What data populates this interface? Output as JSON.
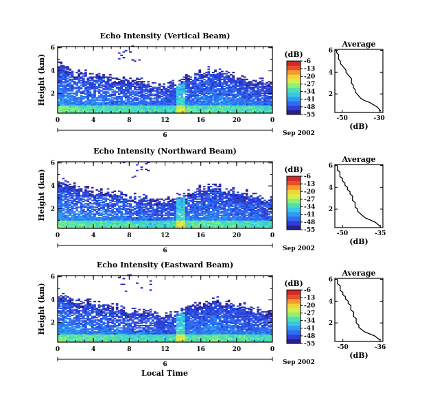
{
  "figure": {
    "bottom_xlabel": "Local Time",
    "date_label": "Sep 2002",
    "day_label": "6"
  },
  "colorbar": {
    "unit": "(dB)",
    "ticks": [
      "-6",
      "-13",
      "-20",
      "-27",
      "-34",
      "-41",
      "-48",
      "-55"
    ],
    "range": [
      -55,
      -6
    ],
    "colors": [
      "#2a1e8c",
      "#2d3fd4",
      "#2f6cf2",
      "#2f9cf2",
      "#38c8e6",
      "#4fe0b0",
      "#8ef07a",
      "#d4f04a",
      "#f5d23a",
      "#f59a2e",
      "#e8502a",
      "#d4282a"
    ]
  },
  "chart_data": [
    {
      "type": "heatmap",
      "title": "Echo Intensity (Vertical Beam)",
      "ylabel": "Height (km)",
      "x_ticks": [
        "0",
        "4",
        "8",
        "12",
        "16",
        "20",
        "0"
      ],
      "xlim": [
        0,
        24
      ],
      "y_ticks": [
        "6",
        "4",
        "2"
      ],
      "ylim": [
        0.3,
        6.1
      ],
      "avg": {
        "title": "Average",
        "xlabel": "(dB)",
        "x_ticks": [
          "-50",
          "-30"
        ],
        "xlim": [
          -54,
          -28
        ],
        "y_ticks": [
          "6",
          "4",
          "2"
        ],
        "ylim": [
          0.3,
          6.1
        ],
        "profile": [
          [
            0.4,
            -29
          ],
          [
            0.6,
            -30
          ],
          [
            0.8,
            -31
          ],
          [
            1.0,
            -33
          ],
          [
            1.2,
            -35
          ],
          [
            1.4,
            -38
          ],
          [
            1.6,
            -40
          ],
          [
            1.8,
            -41
          ],
          [
            2.0,
            -42
          ],
          [
            2.2,
            -43
          ],
          [
            2.4,
            -43
          ],
          [
            2.6,
            -44
          ],
          [
            2.8,
            -44
          ],
          [
            3.0,
            -45
          ],
          [
            3.2,
            -45
          ],
          [
            3.4,
            -45
          ],
          [
            3.6,
            -46
          ],
          [
            3.8,
            -47
          ],
          [
            4.0,
            -48
          ],
          [
            4.2,
            -48
          ],
          [
            4.4,
            -49
          ],
          [
            4.6,
            -50
          ],
          [
            4.8,
            -51
          ],
          [
            5.0,
            -51
          ],
          [
            5.2,
            -52
          ],
          [
            5.4,
            -52
          ],
          [
            5.6,
            -52
          ],
          [
            5.8,
            -53
          ],
          [
            6.0,
            -53
          ]
        ]
      }
    },
    {
      "type": "heatmap",
      "title": "Echo Intensity (Northward Beam)",
      "ylabel": "Height (km)",
      "x_ticks": [
        "0",
        "4",
        "8",
        "12",
        "16",
        "20",
        "0"
      ],
      "xlim": [
        0,
        24
      ],
      "y_ticks": [
        "6",
        "4",
        "2"
      ],
      "ylim": [
        0.3,
        6.1
      ],
      "avg": {
        "title": "Average",
        "xlabel": "(dB)",
        "x_ticks": [
          "-50",
          "-35"
        ],
        "xlim": [
          -53,
          -34
        ],
        "y_ticks": [
          "6",
          "4",
          "2"
        ],
        "ylim": [
          0.3,
          6.1
        ],
        "profile": [
          [
            0.4,
            -35
          ],
          [
            0.6,
            -36
          ],
          [
            0.8,
            -37
          ],
          [
            1.0,
            -39
          ],
          [
            1.2,
            -41
          ],
          [
            1.4,
            -42
          ],
          [
            1.6,
            -43
          ],
          [
            1.8,
            -44
          ],
          [
            2.0,
            -44
          ],
          [
            2.2,
            -45
          ],
          [
            2.4,
            -45
          ],
          [
            2.6,
            -45
          ],
          [
            2.8,
            -46
          ],
          [
            3.0,
            -46
          ],
          [
            3.2,
            -46
          ],
          [
            3.4,
            -47
          ],
          [
            3.6,
            -47
          ],
          [
            3.8,
            -48
          ],
          [
            4.0,
            -48
          ],
          [
            4.2,
            -49
          ],
          [
            4.4,
            -49
          ],
          [
            4.6,
            -50
          ],
          [
            4.8,
            -50
          ],
          [
            5.0,
            -51
          ],
          [
            5.2,
            -51
          ],
          [
            5.4,
            -51
          ],
          [
            5.6,
            -52
          ],
          [
            5.8,
            -52
          ],
          [
            6.0,
            -52
          ]
        ]
      }
    },
    {
      "type": "heatmap",
      "title": "Echo Intensity (Eastward Beam)",
      "ylabel": "Height (km)",
      "x_ticks": [
        "0",
        "4",
        "8",
        "12",
        "16",
        "20",
        "0"
      ],
      "xlim": [
        0,
        24
      ],
      "y_ticks": [
        "6",
        "4",
        "2"
      ],
      "ylim": [
        0.3,
        6.1
      ],
      "avg": {
        "title": "Average",
        "xlabel": "(dB)",
        "x_ticks": [
          "-50",
          "-36"
        ],
        "xlim": [
          -53,
          -35
        ],
        "y_ticks": [
          "6",
          "4",
          "2"
        ],
        "ylim": [
          0.3,
          6.1
        ],
        "profile": [
          [
            0.4,
            -36
          ],
          [
            0.6,
            -37
          ],
          [
            0.8,
            -38
          ],
          [
            1.0,
            -40
          ],
          [
            1.2,
            -42
          ],
          [
            1.4,
            -43
          ],
          [
            1.6,
            -44
          ],
          [
            1.8,
            -44
          ],
          [
            2.0,
            -45
          ],
          [
            2.2,
            -45
          ],
          [
            2.4,
            -45
          ],
          [
            2.6,
            -46
          ],
          [
            2.8,
            -46
          ],
          [
            3.0,
            -46
          ],
          [
            3.2,
            -47
          ],
          [
            3.4,
            -47
          ],
          [
            3.6,
            -47
          ],
          [
            3.8,
            -48
          ],
          [
            4.0,
            -48
          ],
          [
            4.2,
            -49
          ],
          [
            4.4,
            -49
          ],
          [
            4.6,
            -50
          ],
          [
            4.8,
            -50
          ],
          [
            5.0,
            -51
          ],
          [
            5.2,
            -51
          ],
          [
            5.4,
            -51
          ],
          [
            5.6,
            -52
          ],
          [
            5.8,
            -52
          ],
          [
            6.0,
            -52
          ]
        ]
      }
    }
  ]
}
